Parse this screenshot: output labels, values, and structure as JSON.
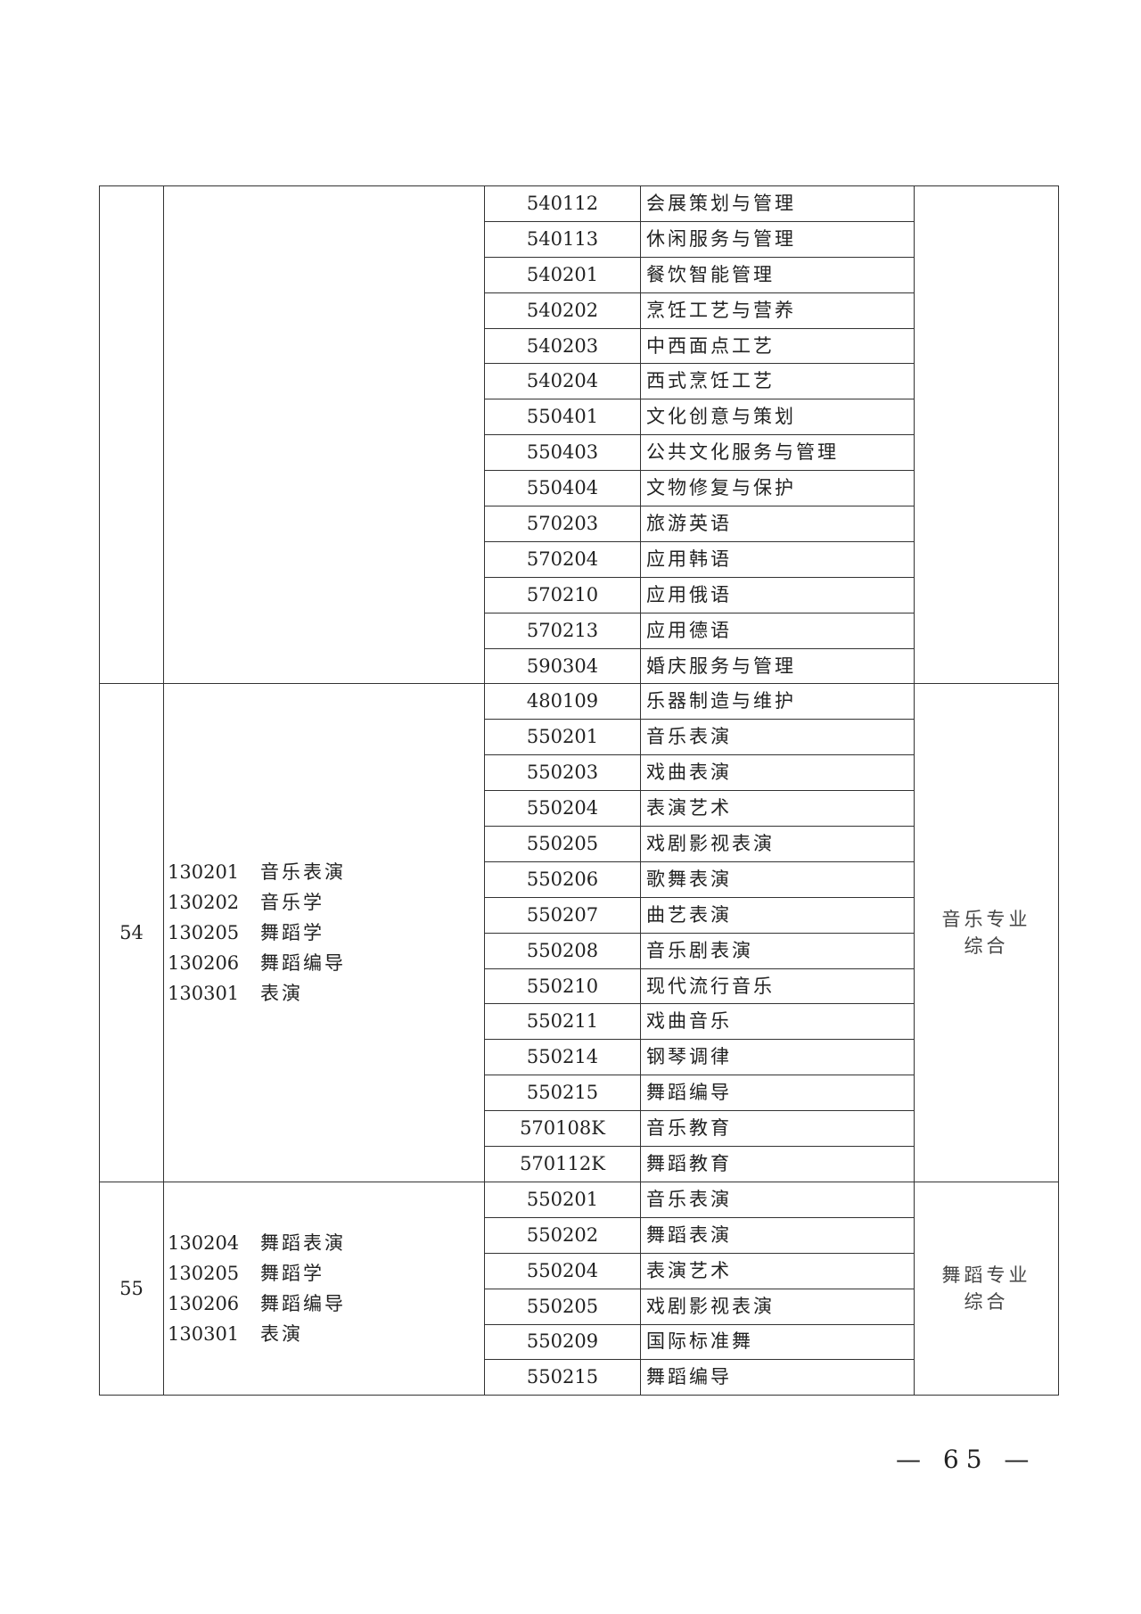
{
  "groups": [
    {
      "index": "",
      "undergrad_majors": [],
      "subject": "",
      "vocational_majors": [
        {
          "code": "540112",
          "name": "会展策划与管理"
        },
        {
          "code": "540113",
          "name": "休闲服务与管理"
        },
        {
          "code": "540201",
          "name": "餐饮智能管理"
        },
        {
          "code": "540202",
          "name": "烹饪工艺与营养"
        },
        {
          "code": "540203",
          "name": "中西面点工艺"
        },
        {
          "code": "540204",
          "name": "西式烹饪工艺"
        },
        {
          "code": "550401",
          "name": "文化创意与策划"
        },
        {
          "code": "550403",
          "name": "公共文化服务与管理"
        },
        {
          "code": "550404",
          "name": "文物修复与保护"
        },
        {
          "code": "570203",
          "name": "旅游英语"
        },
        {
          "code": "570204",
          "name": "应用韩语"
        },
        {
          "code": "570210",
          "name": "应用俄语"
        },
        {
          "code": "570213",
          "name": "应用德语"
        },
        {
          "code": "590304",
          "name": "婚庆服务与管理"
        }
      ]
    },
    {
      "index": "54",
      "undergrad_majors": [
        {
          "code": "130201",
          "name": "音乐表演"
        },
        {
          "code": "130202",
          "name": "音乐学"
        },
        {
          "code": "130205",
          "name": "舞蹈学"
        },
        {
          "code": "130206",
          "name": "舞蹈编导"
        },
        {
          "code": "130301",
          "name": "表演"
        }
      ],
      "subject": "音乐专业综合",
      "vocational_majors": [
        {
          "code": "480109",
          "name": "乐器制造与维护"
        },
        {
          "code": "550201",
          "name": "音乐表演"
        },
        {
          "code": "550203",
          "name": "戏曲表演"
        },
        {
          "code": "550204",
          "name": "表演艺术"
        },
        {
          "code": "550205",
          "name": "戏剧影视表演"
        },
        {
          "code": "550206",
          "name": "歌舞表演"
        },
        {
          "code": "550207",
          "name": "曲艺表演"
        },
        {
          "code": "550208",
          "name": "音乐剧表演"
        },
        {
          "code": "550210",
          "name": "现代流行音乐"
        },
        {
          "code": "550211",
          "name": "戏曲音乐"
        },
        {
          "code": "550214",
          "name": "钢琴调律"
        },
        {
          "code": "550215",
          "name": "舞蹈编导"
        },
        {
          "code": "570108K",
          "name": "音乐教育"
        },
        {
          "code": "570112K",
          "name": "舞蹈教育"
        }
      ]
    },
    {
      "index": "55",
      "undergrad_majors": [
        {
          "code": "130204",
          "name": "舞蹈表演"
        },
        {
          "code": "130205",
          "name": "舞蹈学"
        },
        {
          "code": "130206",
          "name": "舞蹈编导"
        },
        {
          "code": "130301",
          "name": "表演"
        }
      ],
      "subject": "舞蹈专业综合",
      "vocational_majors": [
        {
          "code": "550201",
          "name": "音乐表演"
        },
        {
          "code": "550202",
          "name": "舞蹈表演"
        },
        {
          "code": "550204",
          "name": "表演艺术"
        },
        {
          "code": "550205",
          "name": "戏剧影视表演"
        },
        {
          "code": "550209",
          "name": "国际标准舞"
        },
        {
          "code": "550215",
          "name": "舞蹈编导"
        }
      ]
    }
  ],
  "page_number": "— 65 —"
}
